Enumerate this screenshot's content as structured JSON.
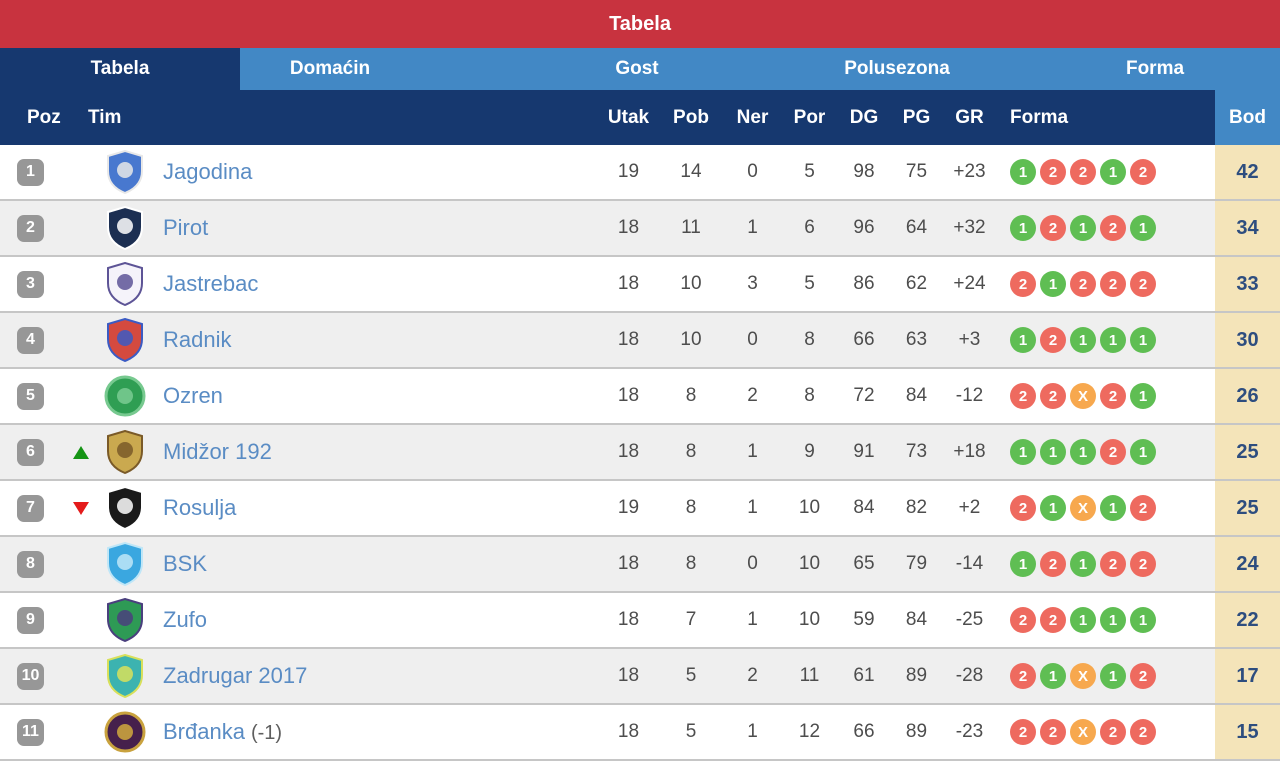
{
  "title_bar": {
    "title": "Tabela"
  },
  "tabs": [
    {
      "label": "Tabela",
      "active": true
    },
    {
      "label": "Domaćin",
      "active": false
    },
    {
      "label": "Gost",
      "active": false
    },
    {
      "label": "Polusezona",
      "active": false
    },
    {
      "label": "Forma",
      "active": false
    }
  ],
  "columns": {
    "poz": "Poz",
    "tim": "Tim",
    "utak": "Utak",
    "pob": "Pob",
    "ner": "Ner",
    "por": "Por",
    "dg": "DG",
    "pg": "PG",
    "gr": "GR",
    "forma": "Forma",
    "bod": "Bod"
  },
  "colors": {
    "title_bg": "#c8333f",
    "tab_bg": "#4288c5",
    "navy": "#16386f",
    "team": "#5a8cc4",
    "win": "#5fbe53",
    "loss": "#ee6a5f",
    "draw": "#f7a84e",
    "up": "#159415",
    "down": "#e41b1b",
    "bod_bg": "#f4e4b9",
    "bod_text": "#2d4d7f"
  },
  "rows": [
    {
      "pos": "1",
      "movement": null,
      "team": "Jagodina",
      "suffix": "",
      "crest": {
        "shape": "shield",
        "primary": "#4878cf",
        "secondary": "#e8e8e8"
      },
      "utak": "19",
      "pob": "14",
      "ner": "0",
      "por": "5",
      "dg": "98",
      "pg": "75",
      "gr": "+23",
      "form": [
        "1",
        "2",
        "2",
        "1",
        "2"
      ],
      "bod": "42"
    },
    {
      "pos": "2",
      "movement": null,
      "team": "Pirot",
      "suffix": "",
      "crest": {
        "shape": "shield",
        "primary": "#1c2f52",
        "secondary": "#ffffff"
      },
      "utak": "18",
      "pob": "11",
      "ner": "1",
      "por": "6",
      "dg": "96",
      "pg": "64",
      "gr": "+32",
      "form": [
        "1",
        "2",
        "1",
        "2",
        "1"
      ],
      "bod": "34"
    },
    {
      "pos": "3",
      "movement": null,
      "team": "Jastrebac",
      "suffix": "",
      "crest": {
        "shape": "shield",
        "primary": "#f5f3fa",
        "secondary": "#5d5496"
      },
      "utak": "18",
      "pob": "10",
      "ner": "3",
      "por": "5",
      "dg": "86",
      "pg": "62",
      "gr": "+24",
      "form": [
        "2",
        "1",
        "2",
        "2",
        "2"
      ],
      "bod": "33"
    },
    {
      "pos": "4",
      "movement": null,
      "team": "Radnik",
      "suffix": "",
      "crest": {
        "shape": "shield",
        "primary": "#d44a3f",
        "secondary": "#3b5bc4"
      },
      "utak": "18",
      "pob": "10",
      "ner": "0",
      "por": "8",
      "dg": "66",
      "pg": "63",
      "gr": "+3",
      "form": [
        "1",
        "2",
        "1",
        "1",
        "1"
      ],
      "bod": "30"
    },
    {
      "pos": "5",
      "movement": null,
      "team": "Ozren",
      "suffix": "",
      "crest": {
        "shape": "circle",
        "primary": "#2f9e53",
        "secondary": "#77c98f"
      },
      "utak": "18",
      "pob": "8",
      "ner": "2",
      "por": "8",
      "dg": "72",
      "pg": "84",
      "gr": "-12",
      "form": [
        "2",
        "2",
        "X",
        "2",
        "1"
      ],
      "bod": "26"
    },
    {
      "pos": "6",
      "movement": "up",
      "team": "Midžor 192",
      "suffix": "",
      "crest": {
        "shape": "shield",
        "primary": "#caa94f",
        "secondary": "#7a5a28"
      },
      "utak": "18",
      "pob": "8",
      "ner": "1",
      "por": "9",
      "dg": "91",
      "pg": "73",
      "gr": "+18",
      "form": [
        "1",
        "1",
        "1",
        "2",
        "1"
      ],
      "bod": "25"
    },
    {
      "pos": "7",
      "movement": "down",
      "team": "Rosulja",
      "suffix": "",
      "crest": {
        "shape": "shield",
        "primary": "#1a1a1a",
        "secondary": "#ffffff"
      },
      "utak": "19",
      "pob": "8",
      "ner": "1",
      "por": "10",
      "dg": "84",
      "pg": "82",
      "gr": "+2",
      "form": [
        "2",
        "1",
        "X",
        "1",
        "2"
      ],
      "bod": "25"
    },
    {
      "pos": "8",
      "movement": null,
      "team": "BSK",
      "suffix": "",
      "crest": {
        "shape": "shield",
        "primary": "#3aa7e0",
        "secondary": "#bfe6f7"
      },
      "utak": "18",
      "pob": "8",
      "ner": "0",
      "por": "10",
      "dg": "65",
      "pg": "79",
      "gr": "-14",
      "form": [
        "1",
        "2",
        "1",
        "2",
        "2"
      ],
      "bod": "24"
    },
    {
      "pos": "9",
      "movement": null,
      "team": "Zufo",
      "suffix": "",
      "crest": {
        "shape": "shield",
        "primary": "#2e9a55",
        "secondary": "#4a3f7e"
      },
      "utak": "18",
      "pob": "7",
      "ner": "1",
      "por": "10",
      "dg": "59",
      "pg": "84",
      "gr": "-25",
      "form": [
        "2",
        "2",
        "1",
        "1",
        "1"
      ],
      "bod": "22"
    },
    {
      "pos": "10",
      "movement": null,
      "team": "Zadrugar 2017",
      "suffix": "",
      "crest": {
        "shape": "shield",
        "primary": "#3cb3b0",
        "secondary": "#d8e05a"
      },
      "utak": "18",
      "pob": "5",
      "ner": "2",
      "por": "11",
      "dg": "61",
      "pg": "89",
      "gr": "-28",
      "form": [
        "2",
        "1",
        "X",
        "1",
        "2"
      ],
      "bod": "17"
    },
    {
      "pos": "11",
      "movement": null,
      "team": "Brđanka",
      "suffix": "(-1)",
      "crest": {
        "shape": "circle",
        "primary": "#46204c",
        "secondary": "#c9a23e"
      },
      "utak": "18",
      "pob": "5",
      "ner": "1",
      "por": "12",
      "dg": "66",
      "pg": "89",
      "gr": "-23",
      "form": [
        "2",
        "2",
        "X",
        "2",
        "2"
      ],
      "bod": "15"
    }
  ]
}
